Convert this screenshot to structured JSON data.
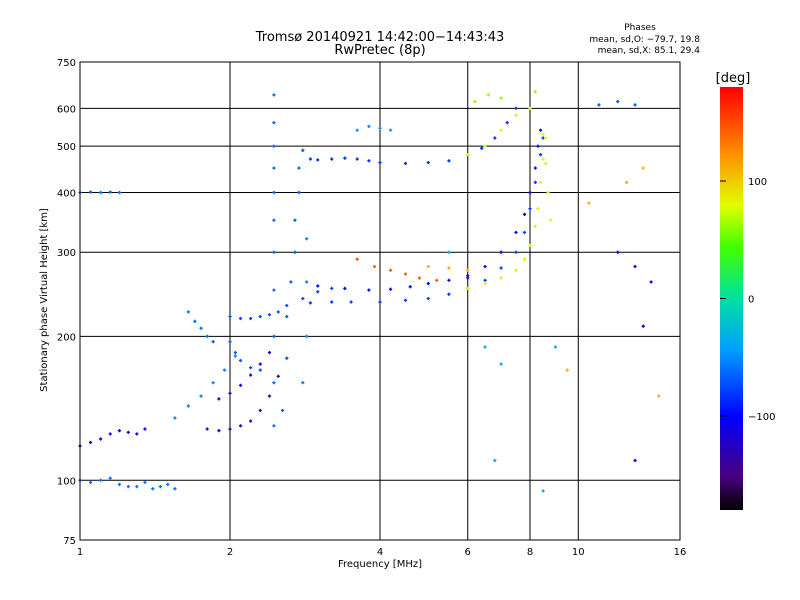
{
  "header": {
    "title": "Tromsø 20140921 14:42:00−14:43:43",
    "subtitle": "RwPretec (8p)",
    "phases_title": "Phases",
    "phases_o": "mean, sd,O: −79.7, 19.8",
    "phases_x": "mean, sd,X:  85.1, 29.4"
  },
  "chart_data": {
    "type": "scatter",
    "xlabel": "Frequency [MHz]",
    "ylabel": "Stationary phase Virtual Height [km]",
    "xscale": "log",
    "yscale": "log",
    "xlim": [
      1,
      16
    ],
    "ylim": [
      75,
      750
    ],
    "x_ticks": [
      1,
      2,
      4,
      6,
      8,
      10,
      16
    ],
    "x_tick_labels": [
      "1",
      "2",
      "4",
      "6",
      "8",
      "10",
      "16"
    ],
    "y_ticks": [
      75,
      100,
      200,
      300,
      400,
      500,
      600,
      750
    ],
    "y_tick_labels": [
      "75",
      "100",
      "200",
      "300",
      "400",
      "500",
      "600",
      "750"
    ],
    "grid": true,
    "colorbar": {
      "label": "[deg]",
      "range": [
        -180,
        180
      ],
      "ticks": [
        100,
        0,
        -100
      ],
      "tick_labels": [
        "100",
        "0",
        "−100"
      ],
      "colormap": "rainbow"
    },
    "series": [
      {
        "phase_deg": -110,
        "points": [
          [
            1.0,
            118
          ],
          [
            1.05,
            120
          ],
          [
            1.1,
            122
          ],
          [
            1.15,
            125
          ],
          [
            1.2,
            127
          ],
          [
            1.25,
            126
          ],
          [
            1.3,
            125
          ],
          [
            1.35,
            128
          ]
        ]
      },
      {
        "phase_deg": -60,
        "points": [
          [
            1.0,
            100
          ],
          [
            1.05,
            99
          ],
          [
            1.1,
            100
          ],
          [
            1.15,
            101
          ],
          [
            1.2,
            98
          ],
          [
            1.25,
            97
          ],
          [
            1.3,
            97
          ],
          [
            1.35,
            99
          ],
          [
            1.4,
            96
          ],
          [
            1.45,
            97
          ],
          [
            1.5,
            98
          ],
          [
            1.55,
            96
          ]
        ]
      },
      {
        "phase_deg": -60,
        "points": [
          [
            1.0,
            400
          ],
          [
            1.05,
            401
          ],
          [
            1.1,
            400
          ],
          [
            1.15,
            401
          ],
          [
            1.2,
            400
          ]
        ]
      },
      {
        "phase_deg": -55,
        "points": [
          [
            1.55,
            135
          ],
          [
            1.65,
            143
          ],
          [
            1.75,
            150
          ],
          [
            1.85,
            160
          ],
          [
            1.95,
            170
          ],
          [
            2.05,
            182
          ]
        ]
      },
      {
        "phase_deg": -60,
        "points": [
          [
            1.65,
            225
          ],
          [
            1.7,
            215
          ],
          [
            1.75,
            208
          ],
          [
            1.8,
            200
          ]
        ]
      },
      {
        "phase_deg": -130,
        "points": [
          [
            1.8,
            128
          ],
          [
            1.9,
            127
          ],
          [
            2.0,
            128
          ],
          [
            2.1,
            130
          ],
          [
            2.2,
            133
          ],
          [
            2.3,
            140
          ],
          [
            2.4,
            150
          ],
          [
            2.5,
            165
          ]
        ]
      },
      {
        "phase_deg": -110,
        "points": [
          [
            1.9,
            148
          ],
          [
            2.0,
            152
          ],
          [
            2.1,
            158
          ],
          [
            2.2,
            166
          ],
          [
            2.3,
            175
          ],
          [
            2.4,
            185
          ]
        ]
      },
      {
        "phase_deg": -70,
        "points": [
          [
            1.85,
            195
          ],
          [
            2.0,
            195
          ],
          [
            2.05,
            185
          ],
          [
            2.1,
            178
          ],
          [
            2.2,
            172
          ],
          [
            2.3,
            170
          ]
        ]
      },
      {
        "phase_deg": -75,
        "points": [
          [
            2.0,
            220
          ],
          [
            2.1,
            218
          ],
          [
            2.2,
            218
          ],
          [
            2.3,
            220
          ],
          [
            2.4,
            222
          ],
          [
            2.5,
            225
          ],
          [
            2.6,
            232
          ],
          [
            2.8,
            240
          ],
          [
            3.0,
            248
          ],
          [
            3.2,
            252
          ]
        ]
      },
      {
        "phase_deg": -65,
        "points": [
          [
            2.45,
            130
          ],
          [
            2.45,
            160
          ],
          [
            2.45,
            200
          ],
          [
            2.45,
            250
          ],
          [
            2.45,
            300
          ],
          [
            2.45,
            350
          ],
          [
            2.45,
            400
          ],
          [
            2.45,
            450
          ],
          [
            2.45,
            500
          ],
          [
            2.45,
            560
          ],
          [
            2.45,
            640
          ]
        ]
      },
      {
        "phase_deg": -70,
        "points": [
          [
            2.55,
            140
          ],
          [
            2.6,
            180
          ],
          [
            2.6,
            220
          ],
          [
            2.65,
            260
          ],
          [
            2.7,
            300
          ],
          [
            2.7,
            350
          ],
          [
            2.75,
            400
          ],
          [
            2.75,
            450
          ],
          [
            2.8,
            490
          ]
        ]
      },
      {
        "phase_deg": -55,
        "points": [
          [
            2.8,
            160
          ],
          [
            2.85,
            200
          ],
          [
            2.85,
            260
          ],
          [
            2.85,
            320
          ]
        ]
      },
      {
        "phase_deg": -85,
        "points": [
          [
            2.9,
            470
          ],
          [
            3.0,
            468
          ],
          [
            3.2,
            470
          ],
          [
            3.4,
            472
          ],
          [
            3.6,
            470
          ],
          [
            3.8,
            466
          ],
          [
            4.0,
            462
          ],
          [
            4.5,
            460
          ],
          [
            5.0,
            462
          ],
          [
            5.5,
            466
          ],
          [
            6.0,
            480
          ],
          [
            6.4,
            495
          ],
          [
            6.8,
            520
          ],
          [
            7.2,
            560
          ],
          [
            7.5,
            600
          ]
        ]
      },
      {
        "phase_deg": -80,
        "points": [
          [
            2.9,
            235
          ],
          [
            3.2,
            236
          ],
          [
            3.5,
            236
          ],
          [
            4.0,
            236
          ],
          [
            4.5,
            238
          ],
          [
            5.0,
            240
          ],
          [
            5.5,
            245
          ],
          [
            6.0,
            252
          ],
          [
            6.5,
            262
          ],
          [
            7.0,
            278
          ],
          [
            7.5,
            300
          ],
          [
            7.8,
            330
          ],
          [
            8.0,
            370
          ],
          [
            8.2,
            420
          ],
          [
            8.4,
            480
          ],
          [
            8.5,
            520
          ]
        ]
      },
      {
        "phase_deg": -100,
        "points": [
          [
            3.0,
            255
          ],
          [
            3.4,
            252
          ],
          [
            3.8,
            250
          ],
          [
            4.2,
            251
          ],
          [
            4.6,
            254
          ],
          [
            5.0,
            258
          ],
          [
            5.5,
            262
          ],
          [
            6.0,
            268
          ]
        ]
      },
      {
        "phase_deg": -105,
        "points": [
          [
            6.0,
            265
          ],
          [
            6.5,
            280
          ],
          [
            7.0,
            300
          ],
          [
            7.5,
            330
          ],
          [
            7.8,
            360
          ],
          [
            8.0,
            400
          ],
          [
            8.2,
            450
          ],
          [
            8.3,
            500
          ],
          [
            8.4,
            540
          ]
        ]
      },
      {
        "phase_deg": 145,
        "points": [
          [
            3.6,
            290
          ],
          [
            3.9,
            280
          ],
          [
            4.2,
            275
          ],
          [
            4.5,
            270
          ],
          [
            4.8,
            265
          ],
          [
            5.2,
            262
          ]
        ]
      },
      {
        "phase_deg": 110,
        "points": [
          [
            5.0,
            280
          ],
          [
            5.5,
            278
          ],
          [
            6.0,
            275
          ]
        ]
      },
      {
        "phase_deg": 85,
        "points": [
          [
            6.0,
            252
          ],
          [
            6.5,
            258
          ],
          [
            7.0,
            265
          ],
          [
            7.5,
            275
          ],
          [
            7.8,
            290
          ],
          [
            8.0,
            310
          ],
          [
            8.2,
            340
          ],
          [
            8.3,
            370
          ],
          [
            8.4,
            420
          ],
          [
            8.5,
            470
          ],
          [
            8.6,
            520
          ]
        ]
      },
      {
        "phase_deg": 75,
        "points": [
          [
            6.0,
            480
          ],
          [
            6.5,
            500
          ],
          [
            7.0,
            540
          ],
          [
            7.5,
            580
          ],
          [
            8.0,
            600
          ],
          [
            8.5,
            530
          ],
          [
            8.6,
            460
          ],
          [
            8.7,
            400
          ],
          [
            8.8,
            350
          ]
        ]
      },
      {
        "phase_deg": -50,
        "points": [
          [
            3.6,
            540
          ],
          [
            3.8,
            550
          ],
          [
            4.0,
            545
          ],
          [
            4.2,
            540
          ]
        ]
      },
      {
        "phase_deg": 60,
        "points": [
          [
            6.2,
            620
          ],
          [
            6.6,
            640
          ],
          [
            7.0,
            630
          ],
          [
            8.2,
            650
          ]
        ]
      },
      {
        "phase_deg": -70,
        "points": [
          [
            11.0,
            610
          ],
          [
            12.0,
            620
          ],
          [
            13.0,
            610
          ]
        ]
      },
      {
        "phase_deg": -100,
        "points": [
          [
            12.0,
            300
          ],
          [
            13.0,
            280
          ],
          [
            14.0,
            260
          ],
          [
            13.5,
            210
          ],
          [
            13.0,
            110
          ]
        ]
      },
      {
        "phase_deg": 110,
        "points": [
          [
            12.5,
            420
          ],
          [
            13.5,
            450
          ],
          [
            10.5,
            380
          ],
          [
            14.5,
            150
          ],
          [
            9.5,
            170
          ]
        ]
      },
      {
        "phase_deg": -40,
        "points": [
          [
            6.5,
            190
          ],
          [
            7.0,
            175
          ],
          [
            6.8,
            110
          ],
          [
            9.0,
            190
          ],
          [
            8.5,
            95
          ],
          [
            5.5,
            300
          ]
        ]
      }
    ]
  }
}
